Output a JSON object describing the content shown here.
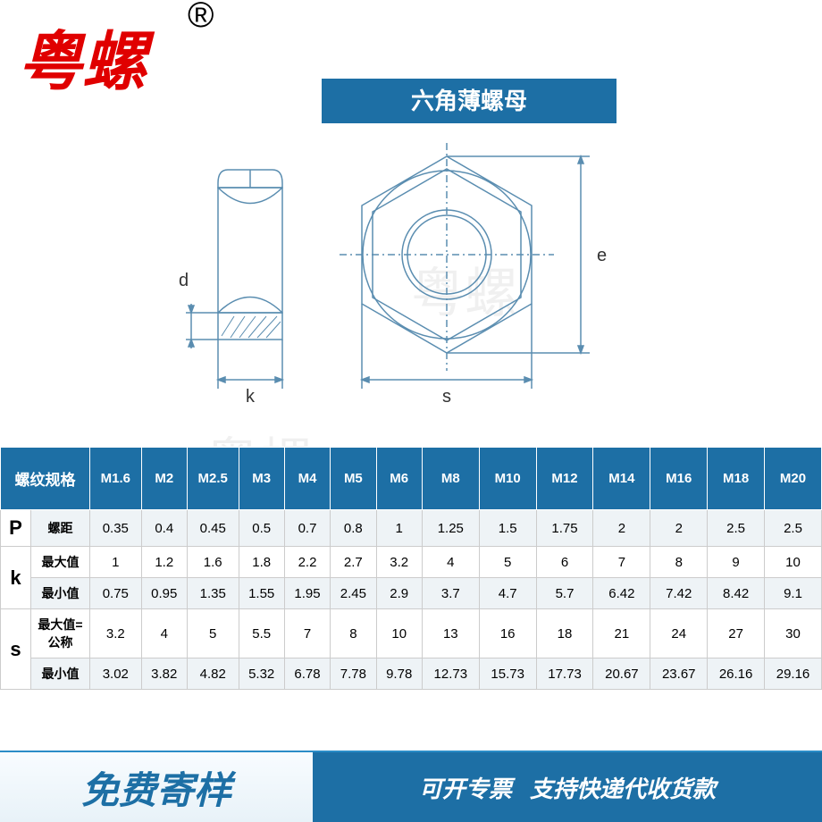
{
  "brand": {
    "text": "粤螺",
    "color": "#e00000",
    "registered": "®"
  },
  "title": {
    "text": "六角薄螺母",
    "bg": "#1d6fa5",
    "fg": "#ffffff"
  },
  "diagram": {
    "labels": {
      "d": "d",
      "k": "k",
      "s": "s",
      "e": "e"
    },
    "stroke": "#5a8db0",
    "stroke_width": 1.5
  },
  "watermark": "粤螺",
  "table": {
    "header_bg": "#1d6fa5",
    "header_fg": "#ffffff",
    "alt_row_bg": "#eef3f6",
    "spec_label": "螺纹规格",
    "columns": [
      "M1.6",
      "M2",
      "M2.5",
      "M3",
      "M4",
      "M5",
      "M6",
      "M8",
      "M10",
      "M12",
      "M14",
      "M16",
      "M18",
      "M20"
    ],
    "groups": [
      {
        "group": "P",
        "rows": [
          {
            "label": "螺距",
            "values": [
              "0.35",
              "0.4",
              "0.45",
              "0.5",
              "0.7",
              "0.8",
              "1",
              "1.25",
              "1.5",
              "1.75",
              "2",
              "2",
              "2.5",
              "2.5"
            ],
            "alt": true
          }
        ]
      },
      {
        "group": "k",
        "rows": [
          {
            "label": "最大值",
            "values": [
              "1",
              "1.2",
              "1.6",
              "1.8",
              "2.2",
              "2.7",
              "3.2",
              "4",
              "5",
              "6",
              "7",
              "8",
              "9",
              "10"
            ],
            "alt": false
          },
          {
            "label": "最小值",
            "values": [
              "0.75",
              "0.95",
              "1.35",
              "1.55",
              "1.95",
              "2.45",
              "2.9",
              "3.7",
              "4.7",
              "5.7",
              "6.42",
              "7.42",
              "8.42",
              "9.1"
            ],
            "alt": true
          }
        ]
      },
      {
        "group": "s",
        "rows": [
          {
            "label": "最大值=公称",
            "values": [
              "3.2",
              "4",
              "5",
              "5.5",
              "7",
              "8",
              "10",
              "13",
              "16",
              "18",
              "21",
              "24",
              "27",
              "30"
            ],
            "alt": false
          },
          {
            "label": "最小值",
            "values": [
              "3.02",
              "3.82",
              "4.82",
              "5.32",
              "6.78",
              "7.78",
              "9.78",
              "12.73",
              "15.73",
              "17.73",
              "20.67",
              "23.67",
              "26.16",
              "29.16"
            ],
            "alt": true
          }
        ]
      }
    ]
  },
  "footer": {
    "left": "免费寄样",
    "right1": "可开专票",
    "right2": "支持快递代收货款",
    "left_fg": "#1d6fa5",
    "right_bg": "#1d6fa5"
  }
}
